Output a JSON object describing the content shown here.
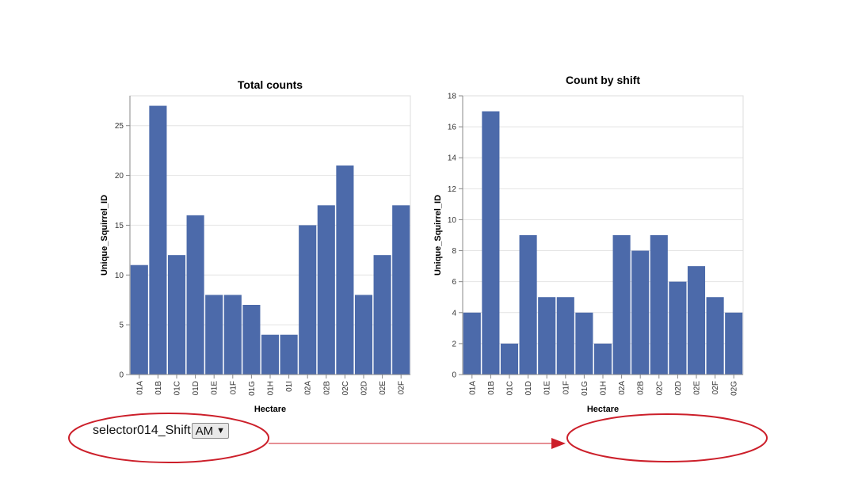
{
  "chart_data": [
    {
      "type": "bar",
      "title": "Total counts",
      "xlabel": "Hectare",
      "ylabel": "Unique_Squirrel_ID",
      "categories": [
        "01A",
        "01B",
        "01C",
        "01D",
        "01E",
        "01F",
        "01G",
        "01H",
        "01I",
        "02A",
        "02B",
        "02C",
        "02D",
        "02E",
        "02F"
      ],
      "values": [
        11,
        27,
        12,
        16,
        8,
        8,
        7,
        4,
        4,
        15,
        17,
        21,
        8,
        12,
        17
      ],
      "ylim": [
        0,
        28
      ],
      "yticks": [
        0,
        5,
        10,
        15,
        20,
        25
      ],
      "grid": true,
      "color": "#4c6aaa"
    },
    {
      "type": "bar",
      "title": "Count by shift",
      "xlabel": "Hectare",
      "ylabel": "Unique_Squirrel_ID",
      "categories": [
        "01A",
        "01B",
        "01C",
        "01D",
        "01E",
        "01F",
        "01G",
        "01H",
        "02A",
        "02B",
        "02C",
        "02D",
        "02E",
        "02F",
        "02G"
      ],
      "values": [
        4,
        17,
        2,
        9,
        5,
        5,
        4,
        2,
        9,
        8,
        9,
        6,
        7,
        5,
        4
      ],
      "ylim": [
        0,
        18
      ],
      "yticks": [
        0,
        2,
        4,
        6,
        8,
        10,
        12,
        14,
        16,
        18
      ],
      "grid": true,
      "color": "#4c6aaa"
    }
  ],
  "selector": {
    "label": "selector014_Shift",
    "value": "AM",
    "caret": "▼"
  },
  "annotations": {
    "ellipse_color": "#cc1f2a",
    "arrow_color": "#cc1f2a"
  }
}
